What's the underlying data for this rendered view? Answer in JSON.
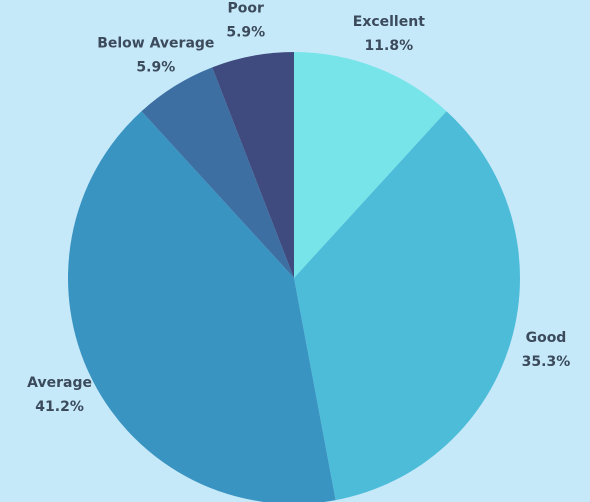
{
  "chart_data": {
    "type": "pie",
    "categories": [
      "Excellent",
      "Good",
      "Average",
      "Below Average",
      "Poor"
    ],
    "values": [
      11.8,
      35.3,
      41.2,
      5.9,
      5.9
    ],
    "value_labels": [
      "11.8%",
      "35.3%",
      "41.2%",
      "5.9%",
      "5.9%"
    ],
    "colors": [
      "#76e4e8",
      "#4dbcd9",
      "#3a94c2",
      "#3d6fa3",
      "#3f4a7e"
    ]
  }
}
